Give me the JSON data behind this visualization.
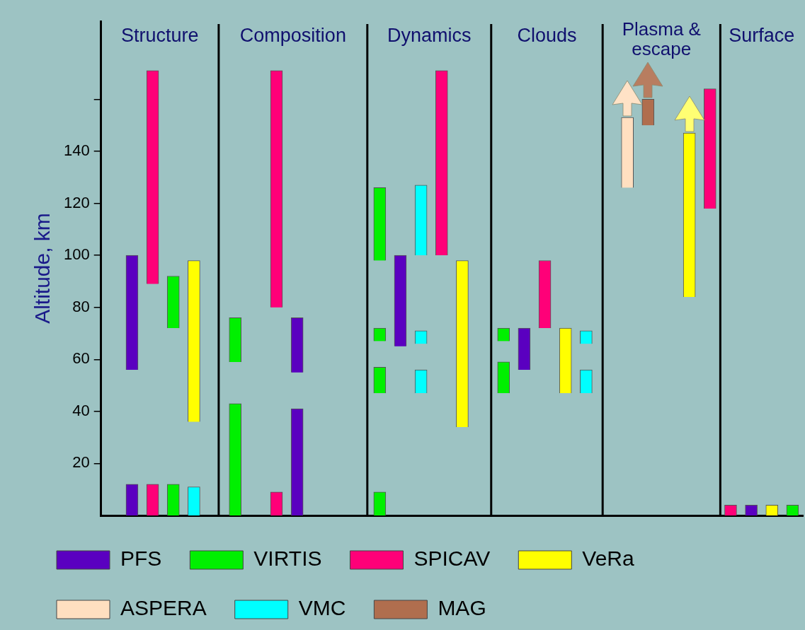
{
  "chart_data": {
    "type": "bar",
    "ylabel": "Altitude, km",
    "annotations": [
      "Structure",
      "Composition",
      "Dynamics",
      "Clouds",
      "Plasma & escape",
      "Surface"
    ],
    "categories": [
      null,
      null,
      null,
      null,
      null,
      null,
      null,
      null,
      null,
      null,
      null,
      null,
      null,
      null,
      null,
      null,
      null,
      null,
      null,
      null,
      null,
      null,
      null,
      null,
      null,
      null,
      null,
      null,
      null,
      null,
      null,
      null,
      null,
      null
    ],
    "series": [
      {
        "name": "PFS",
        "color": "#5a00c0",
        "values": [
          null,
          44,
          null,
          null,
          null,
          null,
          null,
          null,
          null,
          21,
          null,
          null,
          null,
          null,
          35,
          null,
          null,
          null,
          null,
          null,
          16,
          null,
          null,
          null,
          null,
          null,
          null,
          null,
          null,
          null,
          null,
          4,
          null,
          null
        ],
        "base": [
          null,
          56,
          null,
          null,
          null,
          null,
          null,
          null,
          null,
          55,
          null,
          null,
          null,
          null,
          65,
          null,
          null,
          null,
          null,
          null,
          56,
          null,
          null,
          null,
          null,
          null,
          null,
          null,
          null,
          null,
          null,
          0,
          null,
          null
        ]
      },
      {
        "color": "#5a00c0",
        "values": [
          null,
          12,
          null,
          null,
          null,
          null,
          null,
          null,
          null,
          41,
          null,
          null,
          null,
          null,
          null,
          null,
          null,
          null,
          null,
          null,
          null,
          null,
          null,
          null,
          null,
          null,
          null,
          null,
          null,
          null,
          null,
          null,
          null,
          null
        ],
        "base": [
          null,
          0,
          null,
          null,
          null,
          null,
          null,
          null,
          null,
          0,
          null,
          null,
          null,
          null,
          null,
          null,
          null,
          null,
          null,
          null,
          null,
          null,
          null,
          null,
          null,
          null,
          null,
          null,
          null,
          null,
          null,
          null,
          null,
          null
        ]
      },
      {
        "name": "VIRTIS",
        "color": "#00f000",
        "values": [
          null,
          null,
          null,
          20,
          null,
          null,
          17,
          null,
          null,
          null,
          null,
          null,
          null,
          28,
          null,
          null,
          null,
          null,
          null,
          5,
          null,
          null,
          null,
          null,
          null,
          null,
          null,
          null,
          null,
          null,
          null,
          null,
          null,
          4
        ],
        "base": [
          null,
          null,
          null,
          72,
          null,
          null,
          59,
          null,
          null,
          null,
          null,
          null,
          null,
          98,
          null,
          null,
          null,
          null,
          null,
          67,
          null,
          null,
          null,
          null,
          null,
          null,
          null,
          null,
          null,
          null,
          null,
          null,
          null,
          0
        ]
      },
      {
        "color": "#00f000",
        "values": [
          null,
          null,
          null,
          12,
          null,
          null,
          43,
          null,
          null,
          null,
          null,
          null,
          null,
          5,
          null,
          null,
          null,
          null,
          null,
          12,
          null,
          null,
          null,
          null,
          null,
          null,
          null,
          null,
          null,
          null,
          null,
          null,
          null,
          null
        ],
        "base": [
          null,
          null,
          null,
          0,
          null,
          null,
          0,
          null,
          null,
          null,
          null,
          null,
          null,
          67,
          null,
          null,
          null,
          null,
          null,
          47,
          null,
          null,
          null,
          null,
          null,
          null,
          null,
          null,
          null,
          null,
          null,
          null,
          null,
          null
        ]
      },
      {
        "color": "#00f000",
        "values": [
          null,
          null,
          null,
          null,
          null,
          null,
          null,
          null,
          null,
          null,
          null,
          null,
          null,
          10,
          null,
          null,
          null,
          null,
          null,
          null,
          null,
          null,
          null,
          null,
          null,
          null,
          null,
          null,
          null,
          null,
          null,
          null,
          null,
          null
        ],
        "base": [
          null,
          null,
          null,
          null,
          null,
          null,
          null,
          null,
          null,
          null,
          null,
          null,
          null,
          47,
          null,
          null,
          null,
          null,
          null,
          null,
          null,
          null,
          null,
          null,
          null,
          null,
          null,
          null,
          null,
          null,
          null,
          null,
          null,
          null
        ]
      },
      {
        "color": "#00f000",
        "values": [
          null,
          null,
          null,
          null,
          null,
          null,
          null,
          null,
          null,
          null,
          null,
          null,
          null,
          9,
          null,
          null,
          null,
          null,
          null,
          null,
          null,
          null,
          null,
          null,
          null,
          null,
          null,
          null,
          null,
          null,
          null,
          null,
          null,
          null
        ],
        "base": [
          null,
          null,
          null,
          null,
          null,
          null,
          null,
          null,
          null,
          null,
          null,
          null,
          null,
          0,
          null,
          null,
          null,
          null,
          null,
          null,
          null,
          null,
          null,
          null,
          null,
          null,
          null,
          null,
          null,
          null,
          null,
          null,
          null,
          null
        ]
      },
      {
        "name": "SPICAV",
        "color": "#ff0078",
        "values": [
          null,
          null,
          82,
          null,
          null,
          null,
          null,
          null,
          91,
          null,
          null,
          null,
          null,
          null,
          null,
          null,
          71,
          null,
          null,
          null,
          null,
          26,
          null,
          null,
          null,
          null,
          null,
          null,
          null,
          46,
          4,
          null,
          null,
          null
        ],
        "base": [
          null,
          null,
          89,
          null,
          null,
          null,
          null,
          null,
          80,
          null,
          null,
          null,
          null,
          null,
          null,
          null,
          100,
          null,
          null,
          null,
          null,
          72,
          null,
          null,
          null,
          null,
          null,
          null,
          null,
          118,
          0,
          null,
          null,
          null
        ]
      },
      {
        "color": "#ff0078",
        "values": [
          null,
          null,
          12,
          null,
          null,
          null,
          null,
          null,
          9,
          null,
          null,
          null,
          null,
          null,
          null,
          null,
          null,
          null,
          null,
          null,
          null,
          null,
          null,
          null,
          null,
          null,
          null,
          null,
          null,
          null,
          null,
          null,
          null,
          null
        ],
        "base": [
          null,
          null,
          0,
          null,
          null,
          null,
          null,
          null,
          0,
          null,
          null,
          null,
          null,
          null,
          null,
          null,
          null,
          null,
          null,
          null,
          null,
          null,
          null,
          null,
          null,
          null,
          null,
          null,
          null,
          null,
          null,
          null,
          null,
          null
        ]
      },
      {
        "name": "VeRa",
        "color": "#ffff00",
        "values": [
          null,
          null,
          null,
          null,
          62,
          null,
          null,
          null,
          null,
          null,
          null,
          null,
          null,
          null,
          null,
          null,
          null,
          64,
          null,
          null,
          null,
          null,
          25,
          null,
          null,
          null,
          null,
          null,
          63,
          null,
          null,
          null,
          4,
          null
        ],
        "base": [
          null,
          null,
          null,
          null,
          36,
          null,
          null,
          null,
          null,
          null,
          null,
          null,
          null,
          null,
          null,
          null,
          null,
          34,
          null,
          null,
          null,
          null,
          47,
          null,
          null,
          null,
          null,
          null,
          84,
          null,
          null,
          null,
          0,
          null
        ]
      },
      {
        "name": "ASPERA",
        "color": "#ffdfc0",
        "values": [
          null,
          null,
          null,
          null,
          null,
          null,
          null,
          null,
          null,
          null,
          null,
          null,
          null,
          null,
          null,
          null,
          null,
          null,
          null,
          null,
          null,
          null,
          null,
          null,
          null,
          27,
          null,
          null,
          null,
          null,
          null,
          null,
          null,
          null
        ],
        "base": [
          null,
          null,
          null,
          null,
          null,
          null,
          null,
          null,
          null,
          null,
          null,
          null,
          null,
          null,
          null,
          null,
          null,
          null,
          null,
          null,
          null,
          null,
          null,
          null,
          null,
          126,
          null,
          null,
          null,
          null,
          null,
          null,
          null,
          null
        ]
      },
      {
        "name": "VMC",
        "color": "#00ffff",
        "values": [
          null,
          null,
          null,
          null,
          11,
          null,
          null,
          null,
          null,
          null,
          null,
          null,
          null,
          null,
          null,
          27,
          null,
          null,
          null,
          null,
          null,
          null,
          null,
          5,
          null,
          null,
          null,
          null,
          null,
          null,
          null,
          null,
          null,
          null
        ],
        "base": [
          null,
          null,
          null,
          null,
          0,
          null,
          null,
          null,
          null,
          null,
          null,
          null,
          null,
          null,
          null,
          100,
          null,
          null,
          null,
          null,
          null,
          null,
          null,
          66,
          null,
          null,
          null,
          null,
          null,
          null,
          null,
          null,
          null,
          null
        ]
      },
      {
        "color": "#00ffff",
        "values": [
          null,
          null,
          null,
          null,
          null,
          null,
          null,
          null,
          null,
          null,
          null,
          null,
          null,
          null,
          null,
          5,
          null,
          null,
          null,
          null,
          null,
          null,
          null,
          9,
          null,
          null,
          null,
          null,
          null,
          null,
          null,
          null,
          null,
          null
        ],
        "base": [
          null,
          null,
          null,
          null,
          null,
          null,
          null,
          null,
          null,
          null,
          null,
          null,
          null,
          null,
          null,
          66,
          null,
          null,
          null,
          null,
          null,
          null,
          null,
          47,
          null,
          null,
          null,
          null,
          null,
          null,
          null,
          null,
          null,
          null
        ]
      },
      {
        "color": "#00ffff",
        "values": [
          null,
          null,
          null,
          null,
          null,
          null,
          null,
          null,
          null,
          null,
          null,
          null,
          null,
          null,
          null,
          9,
          null,
          null,
          null,
          null,
          null,
          null,
          null,
          null,
          null,
          null,
          null,
          null,
          null,
          null,
          null,
          null,
          null,
          null
        ],
        "base": [
          null,
          null,
          null,
          null,
          null,
          null,
          null,
          null,
          null,
          null,
          null,
          null,
          null,
          null,
          null,
          47,
          null,
          null,
          null,
          null,
          null,
          null,
          null,
          null,
          null,
          null,
          null,
          null,
          null,
          null,
          null,
          null,
          null,
          null
        ]
      },
      {
        "name": "MAG",
        "color": "#b06e4e",
        "values": [
          null,
          null,
          null,
          null,
          null,
          null,
          null,
          null,
          null,
          null,
          null,
          null,
          null,
          null,
          null,
          null,
          null,
          null,
          null,
          null,
          null,
          null,
          null,
          null,
          null,
          null,
          10,
          null,
          null,
          null,
          null,
          null,
          null,
          null
        ],
        "base": [
          null,
          null,
          null,
          null,
          null,
          null,
          null,
          null,
          null,
          null,
          null,
          null,
          null,
          null,
          null,
          null,
          null,
          null,
          null,
          null,
          null,
          null,
          null,
          null,
          null,
          null,
          150,
          null,
          null,
          null,
          null,
          null,
          null,
          null
        ]
      }
    ],
    "ylim": [
      0,
      190
    ],
    "yticks": [
      20,
      40,
      60,
      80,
      100,
      120,
      140,
      {
        "value": 160,
        "label": null
      }
    ],
    "tick_labels": "y",
    "legend": "bottom"
  }
}
